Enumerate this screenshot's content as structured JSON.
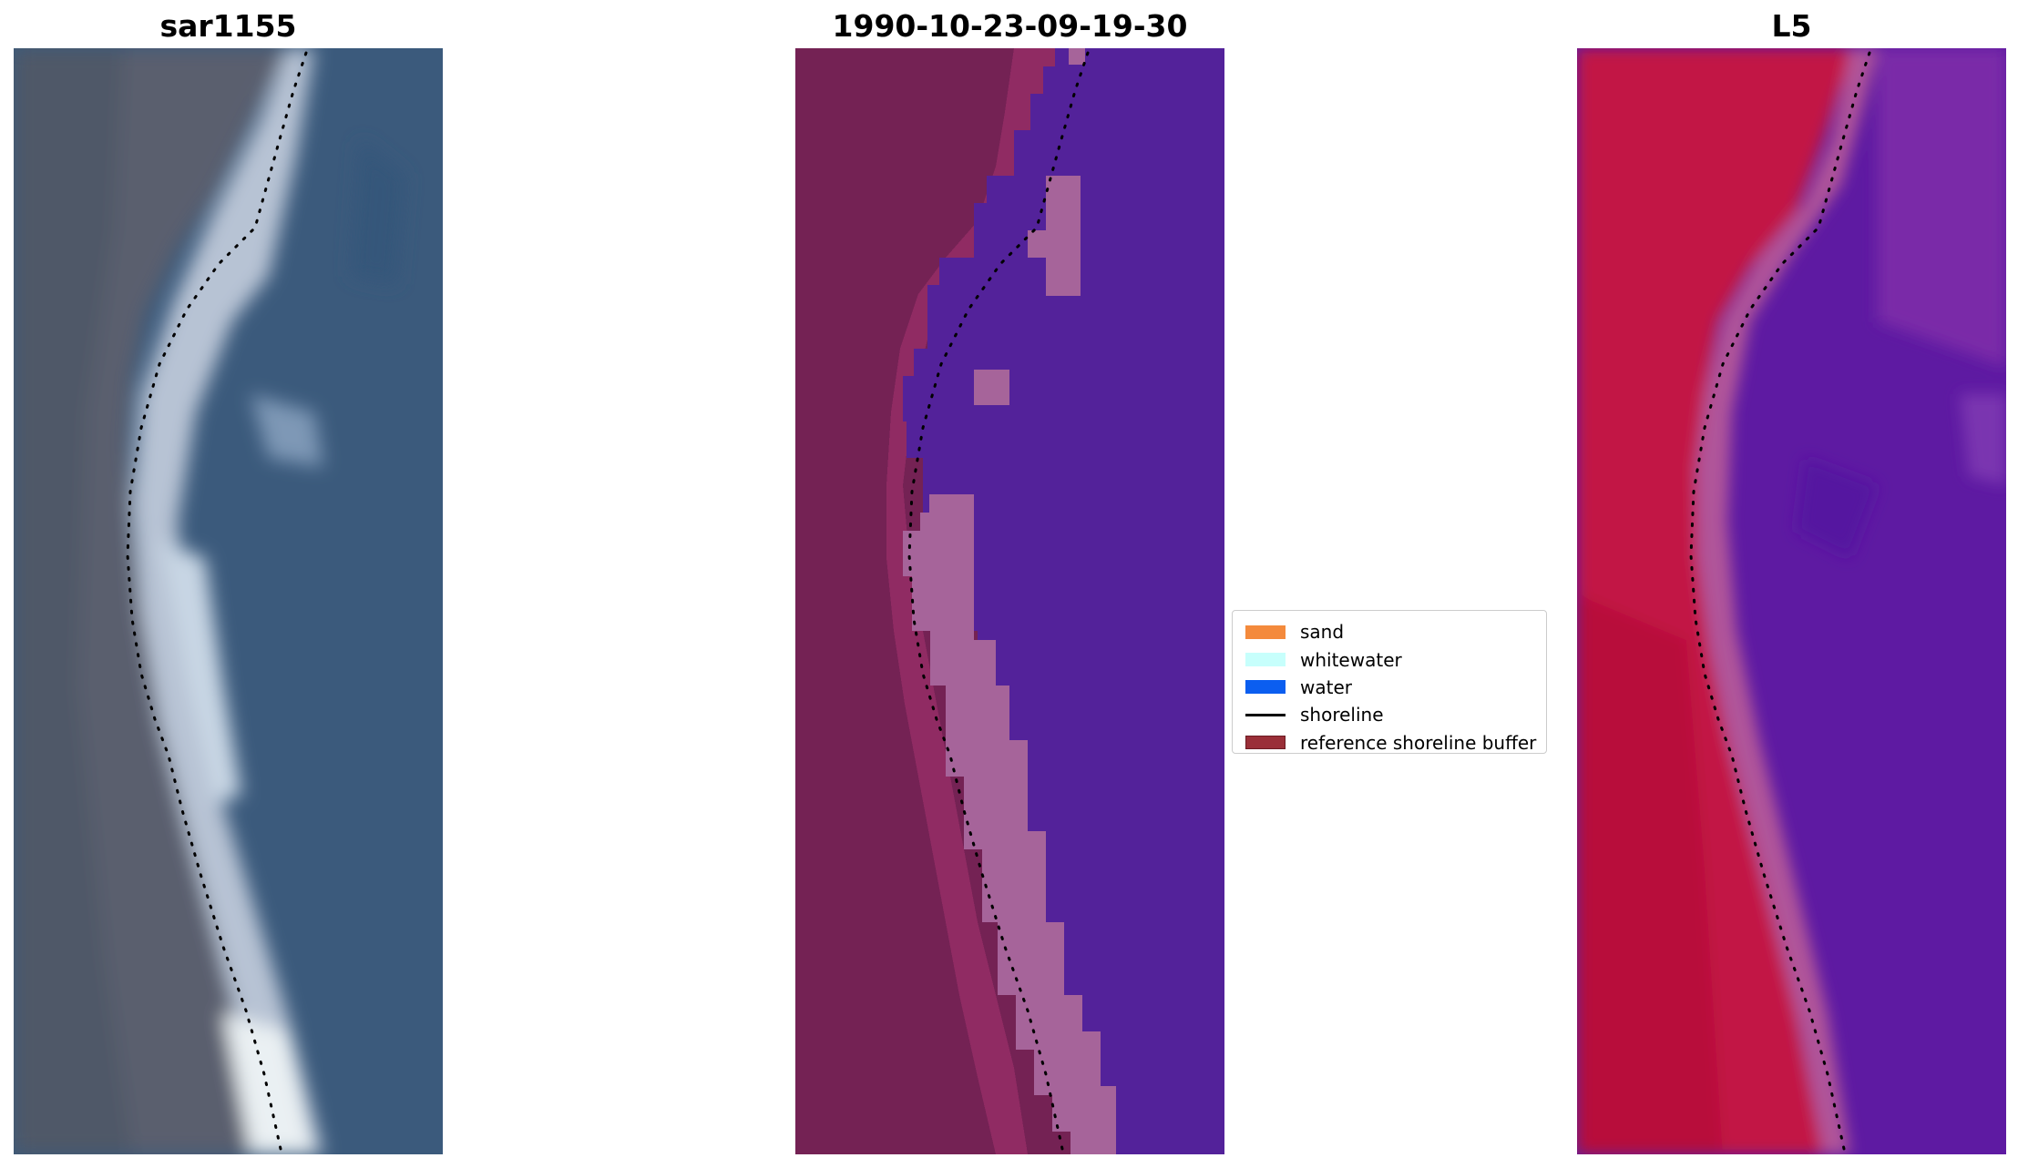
{
  "panels": [
    {
      "title": "sar1155"
    },
    {
      "title": "1990-10-23-09-19-30"
    },
    {
      "title": "L5"
    }
  ],
  "legend": {
    "items": [
      {
        "label": "sand",
        "color": "#f48a3c",
        "kind": "patch"
      },
      {
        "label": "whitewater",
        "color": "#c7fffc",
        "kind": "patch"
      },
      {
        "label": "water",
        "color": "#0b5ef0",
        "kind": "patch"
      },
      {
        "label": "shoreline",
        "color": "#000000",
        "kind": "line"
      },
      {
        "label": "reference shoreline buffer",
        "color": "#9a2f38",
        "kind": "patch"
      }
    ]
  },
  "colors": {
    "rgb_land": "#5f6070",
    "rgb_water": "#3a5a80",
    "classified_land": "#742254",
    "classified_water": "#53229a",
    "classified_whitewater": "#a6649a",
    "ndwi_land": "#c21845",
    "ndwi_water": "#5e1aa2"
  }
}
